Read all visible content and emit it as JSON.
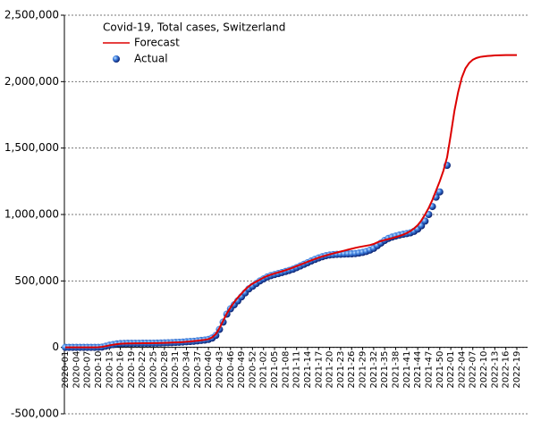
{
  "chart_data": {
    "type": "line",
    "title": "Covid-19, Total cases, Switzerland",
    "categories": [
      "2020-01",
      null,
      null,
      "2020-04",
      null,
      null,
      "2020-07",
      null,
      null,
      "2020-10",
      null,
      null,
      "2020-13",
      null,
      null,
      "2020-16",
      null,
      null,
      "2020-19",
      null,
      null,
      "2020-22",
      null,
      null,
      "2020-25",
      null,
      null,
      "2020-28",
      null,
      null,
      "2020-31",
      null,
      null,
      "2020-34",
      null,
      null,
      "2020-37",
      null,
      null,
      "2020-40",
      null,
      null,
      "2020-43",
      null,
      null,
      "2020-46",
      null,
      null,
      "2020-49",
      null,
      null,
      "2020-52",
      null,
      null,
      "2021-02",
      null,
      null,
      "2021-05",
      null,
      null,
      "2021-08",
      null,
      null,
      "2021-11",
      null,
      null,
      "2021-14",
      null,
      null,
      "2021-17",
      null,
      null,
      "2021-20",
      null,
      null,
      "2021-23",
      null,
      null,
      "2021-26",
      null,
      null,
      "2021-29",
      null,
      null,
      "2021-32",
      null,
      null,
      "2021-35",
      null,
      null,
      "2021-38",
      null,
      null,
      "2021-41",
      null,
      null,
      "2021-44",
      null,
      null,
      "2021-47",
      null,
      null,
      "2021-50",
      null,
      null,
      "2022-01",
      null,
      null,
      "2022-04",
      null,
      null,
      "2022-07",
      null,
      null,
      "2022-10",
      null,
      null,
      "2022-13",
      null,
      null,
      "2022-16",
      null,
      null,
      "2022-19"
    ],
    "series": [
      {
        "name": "Forecast",
        "color": "#dd0000",
        "style": "line",
        "values": [
          0,
          0,
          0,
          0,
          0,
          0,
          0,
          0,
          0,
          1000,
          4000,
          9000,
          15000,
          20000,
          24000,
          27000,
          28500,
          29500,
          30000,
          30500,
          30800,
          31000,
          31200,
          31500,
          32000,
          32500,
          33200,
          34000,
          35000,
          36000,
          37000,
          38500,
          40000,
          42000,
          44000,
          47000,
          50000,
          53000,
          57000,
          62000,
          75000,
          100000,
          145000,
          200000,
          255000,
          300000,
          340000,
          375000,
          405000,
          435000,
          460000,
          480000,
          495000,
          510000,
          525000,
          537000,
          547000,
          556000,
          564000,
          572000,
          581000,
          590000,
          600000,
          611000,
          622000,
          633000,
          644000,
          655000,
          665000,
          675000,
          684000,
          692000,
          700000,
          707000,
          714000,
          721000,
          728000,
          735000,
          742000,
          749000,
          755000,
          760000,
          765000,
          770000,
          778000,
          790000,
          800000,
          808000,
          815000,
          822000,
          830000,
          838000,
          848000,
          860000,
          875000,
          895000,
          920000,
          955000,
          1000000,
          1050000,
          1110000,
          1180000,
          1250000,
          1330000,
          1430000,
          1600000,
          1780000,
          1920000,
          2030000,
          2100000,
          2140000,
          2165000,
          2178000,
          2186000,
          2190000,
          2193000,
          2195000,
          2197000,
          2198000,
          2199000,
          2200000,
          2200000,
          2200000,
          2200000
        ]
      },
      {
        "name": "Actual",
        "color": "#1f5fd0",
        "style": "dots",
        "values": [
          0,
          0,
          0,
          0,
          0,
          0,
          0,
          0,
          0,
          500,
          2200,
          8800,
          16000,
          21000,
          26000,
          28500,
          29600,
          30200,
          30500,
          30700,
          30900,
          31000,
          31100,
          31300,
          31600,
          32000,
          33000,
          34000,
          35000,
          36000,
          37000,
          38500,
          40000,
          42000,
          44000,
          46000,
          49000,
          52000,
          55000,
          60000,
          70000,
          90000,
          135000,
          190000,
          250000,
          290000,
          320000,
          350000,
          380000,
          410000,
          440000,
          460000,
          480000,
          500000,
          515000,
          530000,
          540000,
          548000,
          555000,
          563000,
          571000,
          579000,
          588000,
          600000,
          612000,
          625000,
          637000,
          650000,
          662000,
          673000,
          682000,
          690000,
          695000,
          698000,
          700000,
          701000,
          702000,
          703000,
          704000,
          706000,
          710000,
          715000,
          722000,
          732000,
          745000,
          765000,
          785000,
          805000,
          820000,
          830000,
          838000,
          845000,
          851000,
          856000,
          862000,
          873000,
          890000,
          915000,
          950000,
          1000000,
          1060000,
          1130000,
          1170000,
          null,
          1370000,
          null,
          null,
          null,
          null,
          null,
          null,
          null,
          null,
          null,
          null,
          null,
          null,
          null,
          null,
          null,
          null,
          null,
          null,
          null
        ]
      }
    ],
    "ylim": [
      -500000,
      2500000
    ],
    "yticks": [
      {
        "value": -500000,
        "label": "-500,000"
      },
      0,
      {
        "value": 500000,
        "label": "500,000"
      },
      {
        "value": 1000000,
        "label": "1,000,000"
      },
      {
        "value": 1500000,
        "label": "1,500,000"
      },
      {
        "value": 2000000,
        "label": "2,000,000"
      },
      {
        "value": 2500000,
        "label": "2,500,000"
      }
    ],
    "grid": true
  }
}
